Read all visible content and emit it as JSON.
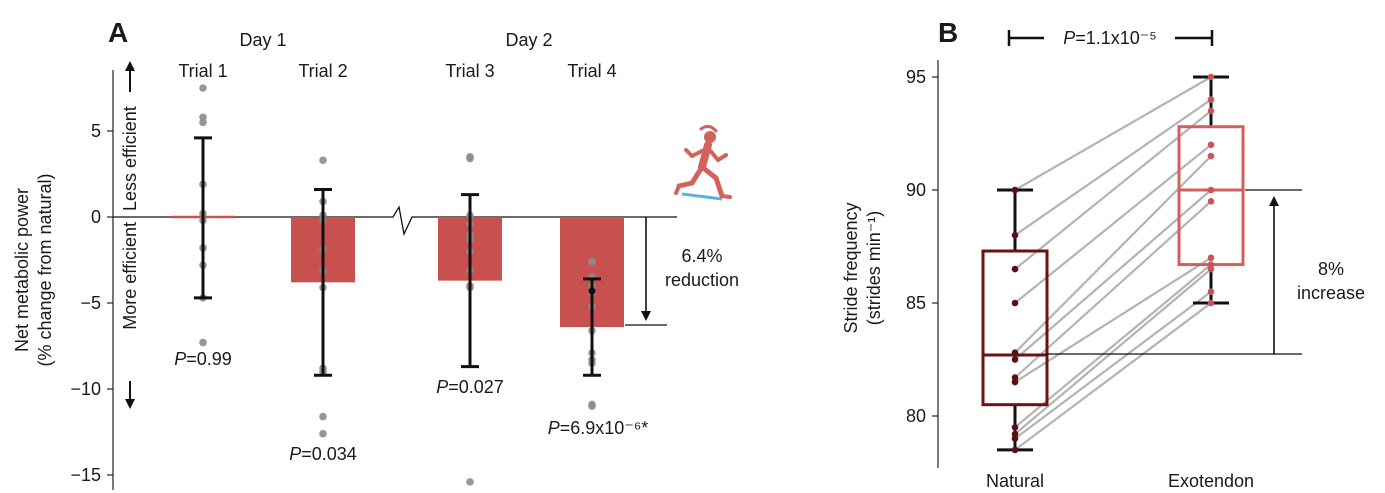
{
  "chart_data": [
    {
      "panel": "A",
      "type": "bar",
      "ylabel": "Net metabolic power",
      "ylabel2": "(% change from natural)",
      "ylim": [
        -16,
        8.5
      ],
      "yticks": [
        5,
        0,
        -5,
        -10,
        -15
      ],
      "ytick_labels": [
        "5",
        "0",
        "−5",
        "−10",
        "−15"
      ],
      "day_labels": [
        "Day 1",
        "Day 2"
      ],
      "arrow_up_label": "Less efficient",
      "arrow_down_label": "More efficient",
      "categories": [
        "Trial 1",
        "Trial 2",
        "Trial 3",
        "Trial 4"
      ],
      "values": [
        0,
        -3.8,
        -3.7,
        -6.4
      ],
      "error_upper": [
        4.6,
        1.6,
        1.3,
        -3.6
      ],
      "error_lower": [
        -4.7,
        -9.2,
        -8.7,
        -9.2
      ],
      "points": [
        [
          7.5,
          5.8,
          5.5,
          1.9,
          0.2,
          -0.2,
          -1.8,
          -2.8,
          -4.7,
          -7.3
        ],
        [
          3.3,
          0.9,
          0.1,
          -0.2,
          -1.9,
          -3.1,
          -4.1,
          -8.8,
          -9.0,
          -11.6,
          -12.6
        ],
        [
          3.5,
          3.4,
          0.1,
          -0.4,
          -1.0,
          -1.3,
          -2.0,
          -3.1,
          -4.0,
          -4.1,
          -15.4
        ],
        [
          -2.6,
          -3.5,
          -4.0,
          -4.3,
          -4.4,
          -5.2,
          -6.6,
          -7.9,
          -8.3,
          -8.5,
          -10.9,
          -11.0
        ]
      ],
      "p_values": [
        "=0.99",
        "=0.034",
        "=0.027",
        "=6.9x10⁻⁶*"
      ],
      "p_symbol": "P",
      "annotation_value": "6.4%",
      "annotation_text": "reduction",
      "colors": {
        "bar": "#c8504f",
        "point": "#8c8c8c",
        "error": "#111111",
        "runner": "#d2625a",
        "runner_band": "#5bb4d6"
      }
    },
    {
      "panel": "B",
      "type": "box",
      "ylabel": "Stride frequency",
      "ylabel2": "(strides min⁻¹)",
      "ylim": [
        77.8,
        96.2
      ],
      "yticks": [
        80,
        85,
        90,
        95
      ],
      "categories": [
        "Natural",
        "Exotendon"
      ],
      "boxes": [
        {
          "whisker_low": 78.5,
          "q1": 80.5,
          "median": 82.7,
          "q3": 87.3,
          "whisker_high": 90.0
        },
        {
          "whisker_low": 85.0,
          "q1": 86.7,
          "median": 90.0,
          "q3": 92.8,
          "whisker_high": 95.0
        }
      ],
      "pairs": [
        [
          90.0,
          95.0
        ],
        [
          88.0,
          94.0
        ],
        [
          86.5,
          93.5
        ],
        [
          85.0,
          92.0
        ],
        [
          82.8,
          91.5
        ],
        [
          82.5,
          90.0
        ],
        [
          81.7,
          89.5
        ],
        [
          81.5,
          87.0
        ],
        [
          79.5,
          86.7
        ],
        [
          79.2,
          86.5
        ],
        [
          79.0,
          85.5
        ],
        [
          78.5,
          85.0
        ]
      ],
      "p_symbol": "P",
      "p_value": "=1.1x10⁻⁵",
      "annotation_value": "8%",
      "annotation_text": "increase",
      "colors": {
        "natural": "#6b1214",
        "exotendon": "#d0605d",
        "pair_line": "#b3b3b3",
        "natural_dot": "#5a0f12",
        "exotendon_dot": "#c95556"
      }
    }
  ]
}
